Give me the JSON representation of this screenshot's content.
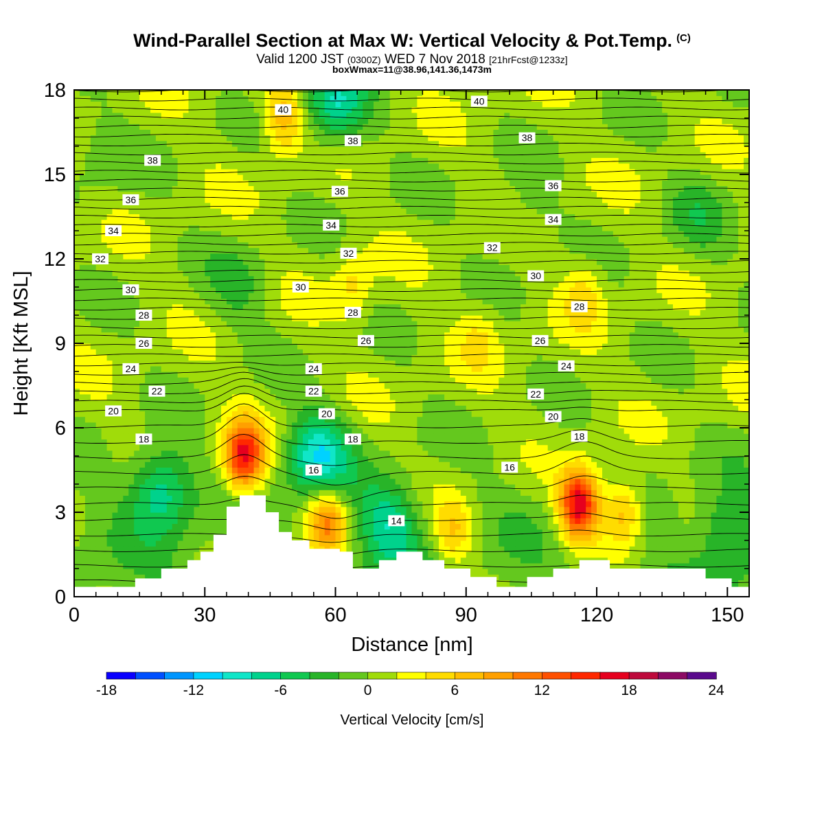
{
  "header": {
    "title": "Wind-Parallel Section at Max W: Vertical Velocity & Pot.Temp.",
    "copyright_mark": "(C)",
    "subtitle_a": "Valid 1200 JST",
    "subtitle_b": "(0300Z)",
    "subtitle_c": "WED 7 Nov 2018",
    "subtitle_d": "[21hrFcst@1233z]",
    "subtitle2": "boxWmax=11@38.96,141.36,1473m"
  },
  "chart_data": {
    "type": "heatmap",
    "title": "Wind-Parallel Section at Max W: Vertical Velocity & Pot.Temp.",
    "xlabel": "Distance [nm]",
    "ylabel": "Height [Kft MSL]",
    "xlim": [
      0,
      155
    ],
    "ylim": [
      0,
      18
    ],
    "x_ticks": [
      "0",
      "30",
      "60",
      "90",
      "120",
      "150"
    ],
    "y_ticks": [
      "0",
      "3",
      "6",
      "9",
      "12",
      "15",
      "18"
    ],
    "colorbar": {
      "label": "Vertical Velocity [cm/s]",
      "tick_labels": [
        "-18",
        "-12",
        "-6",
        "0",
        "6",
        "12",
        "18",
        "24"
      ],
      "bins": [
        -18,
        -16,
        -14,
        -12,
        -10,
        -8,
        -6,
        -4,
        -2,
        0,
        2,
        4,
        6,
        8,
        10,
        12,
        14,
        16,
        18,
        20,
        22,
        24
      ],
      "colors": [
        "#0a00ff",
        "#0050ff",
        "#0096ff",
        "#00d2ff",
        "#10e6c8",
        "#00d28c",
        "#10c850",
        "#28b428",
        "#64c81e",
        "#a0dc0a",
        "#ffff00",
        "#ffdc00",
        "#ffbe00",
        "#ffa000",
        "#ff7800",
        "#ff5000",
        "#ff2800",
        "#e6001e",
        "#be0a3c",
        "#8c0a64",
        "#5a0a8c"
      ]
    },
    "terrain_kft": [
      [
        0,
        0.35
      ],
      [
        14,
        0.35
      ],
      [
        14,
        0.65
      ],
      [
        20,
        0.65
      ],
      [
        20,
        1.0
      ],
      [
        26,
        1.0
      ],
      [
        26,
        1.3
      ],
      [
        29,
        1.3
      ],
      [
        29,
        1.6
      ],
      [
        32,
        1.6
      ],
      [
        32,
        2.2
      ],
      [
        35,
        2.2
      ],
      [
        35,
        3.2
      ],
      [
        38,
        3.2
      ],
      [
        38,
        3.6
      ],
      [
        44,
        3.6
      ],
      [
        44,
        3.0
      ],
      [
        47,
        3.0
      ],
      [
        47,
        2.3
      ],
      [
        50,
        2.3
      ],
      [
        50,
        2.0
      ],
      [
        54,
        2.0
      ],
      [
        54,
        1.7
      ],
      [
        61,
        1.7
      ],
      [
        61,
        1.6
      ],
      [
        64,
        1.6
      ],
      [
        64,
        1.0
      ],
      [
        70,
        1.0
      ],
      [
        70,
        1.3
      ],
      [
        74,
        1.3
      ],
      [
        74,
        1.6
      ],
      [
        80,
        1.6
      ],
      [
        80,
        1.3
      ],
      [
        85,
        1.3
      ],
      [
        85,
        1.0
      ],
      [
        91,
        1.0
      ],
      [
        91,
        0.7
      ],
      [
        97,
        0.7
      ],
      [
        97,
        0.35
      ],
      [
        104,
        0.35
      ],
      [
        104,
        0.7
      ],
      [
        110,
        0.7
      ],
      [
        110,
        1.0
      ],
      [
        116,
        1.0
      ],
      [
        116,
        1.3
      ],
      [
        123,
        1.3
      ],
      [
        123,
        1.0
      ],
      [
        145,
        1.0
      ],
      [
        145,
        0.65
      ],
      [
        151,
        0.65
      ],
      [
        151,
        0.35
      ],
      [
        155,
        0.35
      ]
    ],
    "velocity_features": [
      {
        "x": 39,
        "y": 5.0,
        "w": 16,
        "kind": "updraft"
      },
      {
        "x": 58,
        "y": 2.7,
        "w": 10,
        "kind": "updraft"
      },
      {
        "x": 116,
        "y": 3.3,
        "w": 18,
        "kind": "updraft"
      },
      {
        "x": 126,
        "y": 3.0,
        "w": 8,
        "kind": "updraft"
      },
      {
        "x": 87,
        "y": 2.3,
        "w": 6,
        "kind": "updraft"
      },
      {
        "x": 56,
        "y": 5.0,
        "w": -10,
        "kind": "downdraft"
      },
      {
        "x": 20,
        "y": 3.8,
        "w": -8,
        "kind": "downdraft"
      },
      {
        "x": 72,
        "y": 2.6,
        "w": -7,
        "kind": "downdraft"
      },
      {
        "x": 60,
        "y": 17.5,
        "w": -8,
        "kind": "downdraft"
      },
      {
        "x": 48,
        "y": 17.0,
        "w": 7,
        "kind": "updraft"
      },
      {
        "x": 64,
        "y": 11.0,
        "w": 4,
        "kind": "updraft"
      },
      {
        "x": 93,
        "y": 9.2,
        "w": 3,
        "kind": "updraft"
      },
      {
        "x": 117,
        "y": 10.8,
        "w": 4,
        "kind": "updraft"
      },
      {
        "x": 103,
        "y": 13.5,
        "w": -2,
        "kind": "downdraft"
      },
      {
        "x": 143,
        "y": 13.5,
        "w": -3,
        "kind": "downdraft"
      },
      {
        "x": 6,
        "y": 15.5,
        "w": -2,
        "kind": "downdraft"
      },
      {
        "x": 38,
        "y": 11.0,
        "w": -3,
        "kind": "downdraft"
      },
      {
        "x": 150,
        "y": 2.3,
        "w": -5,
        "kind": "downdraft"
      }
    ],
    "theta_labels": [
      {
        "v": "40",
        "x": 48,
        "y": 17.3
      },
      {
        "v": "40",
        "x": 93,
        "y": 17.6
      },
      {
        "v": "38",
        "x": 18,
        "y": 15.5
      },
      {
        "v": "38",
        "x": 64,
        "y": 16.2
      },
      {
        "v": "38",
        "x": 104,
        "y": 16.3
      },
      {
        "v": "36",
        "x": 13,
        "y": 14.1
      },
      {
        "v": "36",
        "x": 61,
        "y": 14.4
      },
      {
        "v": "36",
        "x": 110,
        "y": 14.6
      },
      {
        "v": "34",
        "x": 9,
        "y": 13.0
      },
      {
        "v": "34",
        "x": 59,
        "y": 13.2
      },
      {
        "v": "34",
        "x": 110,
        "y": 13.4
      },
      {
        "v": "32",
        "x": 6,
        "y": 12.0
      },
      {
        "v": "32",
        "x": 63,
        "y": 12.2
      },
      {
        "v": "32",
        "x": 96,
        "y": 12.4
      },
      {
        "v": "30",
        "x": 13,
        "y": 10.9
      },
      {
        "v": "30",
        "x": 52,
        "y": 11.0
      },
      {
        "v": "30",
        "x": 106,
        "y": 11.4
      },
      {
        "v": "28",
        "x": 16,
        "y": 10.0
      },
      {
        "v": "28",
        "x": 64,
        "y": 10.1
      },
      {
        "v": "28",
        "x": 116,
        "y": 10.3
      },
      {
        "v": "26",
        "x": 16,
        "y": 9.0
      },
      {
        "v": "26",
        "x": 67,
        "y": 9.1
      },
      {
        "v": "26",
        "x": 107,
        "y": 9.1
      },
      {
        "v": "24",
        "x": 13,
        "y": 8.1
      },
      {
        "v": "24",
        "x": 55,
        "y": 8.1
      },
      {
        "v": "24",
        "x": 113,
        "y": 8.2
      },
      {
        "v": "22",
        "x": 19,
        "y": 7.3
      },
      {
        "v": "22",
        "x": 55,
        "y": 7.3
      },
      {
        "v": "22",
        "x": 106,
        "y": 7.2
      },
      {
        "v": "20",
        "x": 9,
        "y": 6.6
      },
      {
        "v": "20",
        "x": 58,
        "y": 6.5
      },
      {
        "v": "20",
        "x": 110,
        "y": 6.4
      },
      {
        "v": "18",
        "x": 16,
        "y": 5.6
      },
      {
        "v": "18",
        "x": 64,
        "y": 5.6
      },
      {
        "v": "18",
        "x": 116,
        "y": 5.7
      },
      {
        "v": "16",
        "x": 55,
        "y": 4.5
      },
      {
        "v": "16",
        "x": 100,
        "y": 4.6
      },
      {
        "v": "14",
        "x": 74,
        "y": 2.7
      }
    ],
    "grid": false
  }
}
